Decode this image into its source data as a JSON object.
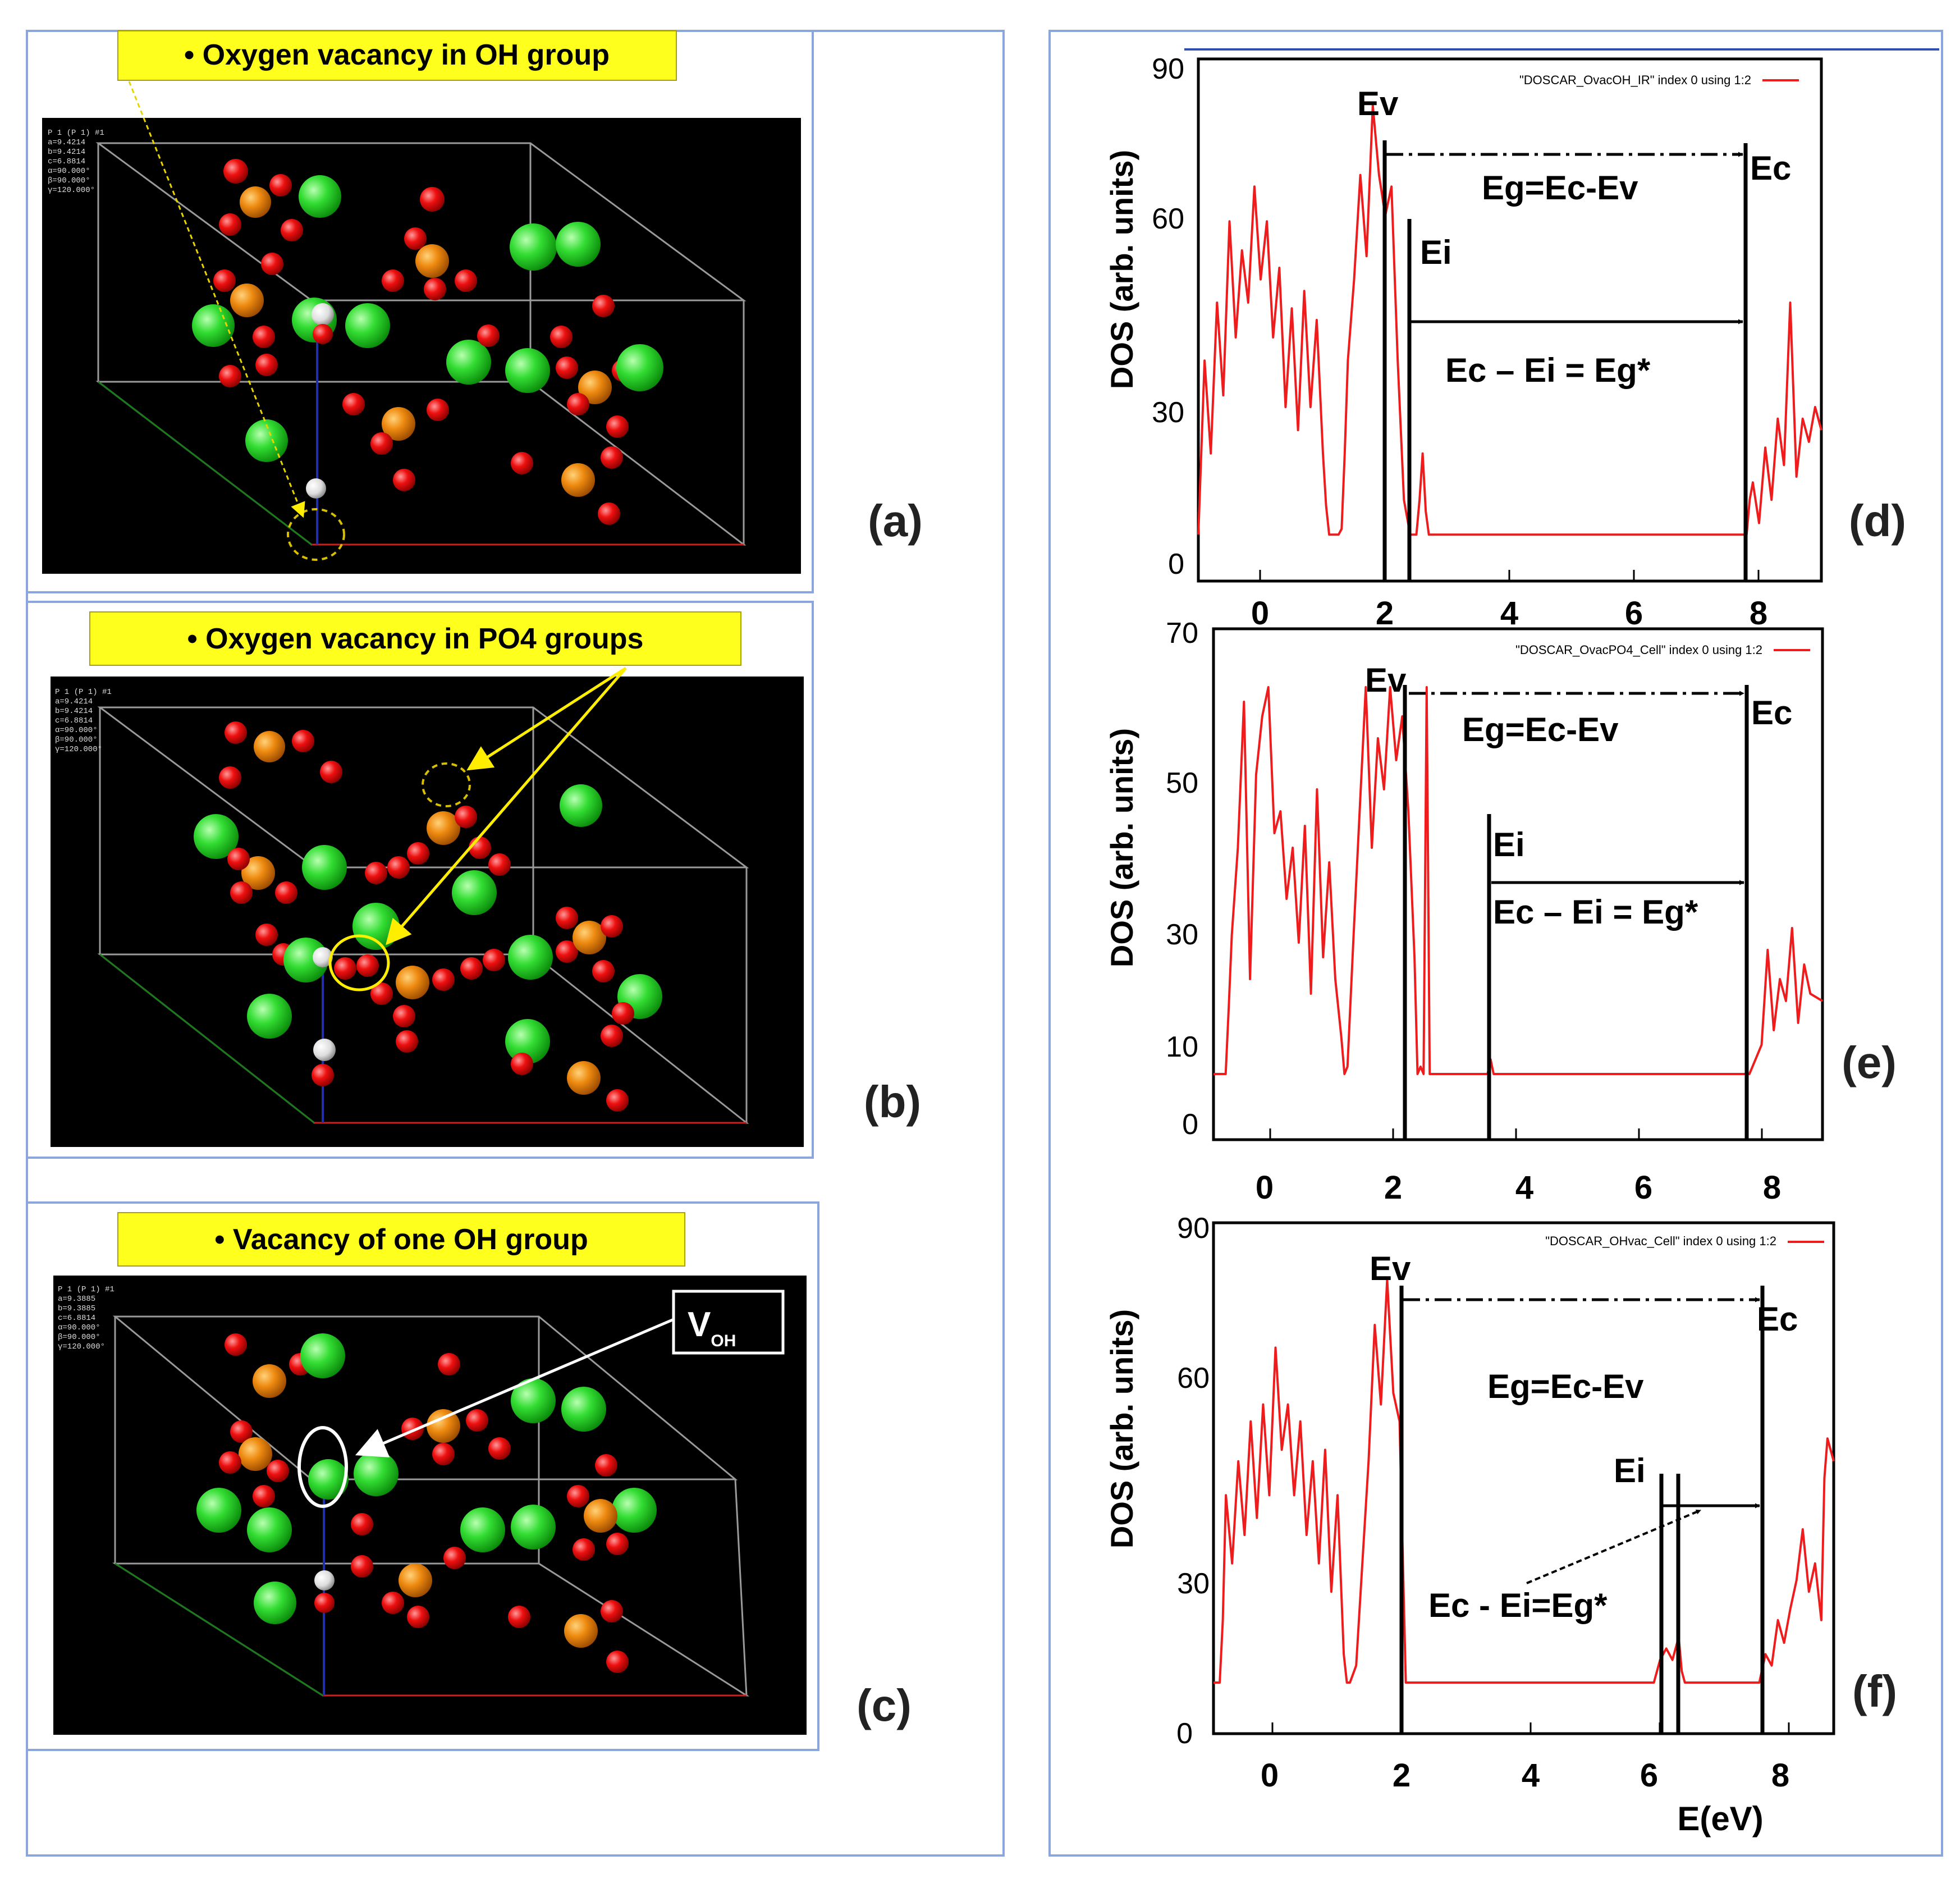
{
  "crystal_panels": [
    {
      "callout": "•  Oxygen vacancy in OH group",
      "letter": "(a)",
      "header_lines": [
        "P 1 (P 1) #1",
        "a=9.4214",
        "b=9.4214",
        "c=6.8814",
        "α=90.000°",
        "β=90.000°",
        "γ=120.000°"
      ]
    },
    {
      "callout": "•  Oxygen vacancy in PO4 groups",
      "letter": "(b)",
      "header_lines": [
        "P 1 (P 1) #1",
        "a=9.4214",
        "b=9.4214",
        "c=6.8814",
        "α=90.000°",
        "β=90.000°",
        "γ=120.000°"
      ]
    },
    {
      "callout": "•  Vacancy of one OH group",
      "letter": "(c)",
      "header_lines": [
        "P 1 (P 1) #1",
        "a=9.3885",
        "b=9.3885",
        "c=6.8814",
        "α=90.000°",
        "β=90.000°",
        "γ=120.000°"
      ]
    }
  ],
  "voh_label": {
    "main": "V",
    "sub": "OH"
  },
  "colors": {
    "curve": "#ee1c1c",
    "callout_bg": "#ffff1e",
    "frame": "#8aa6dc"
  },
  "chart_data": [
    {
      "type": "line",
      "letter": "(d)",
      "legend": "\"DOSCAR_OvacOH_IR\" index 0 using 1:2",
      "ylabel": "DOS (arb. units)",
      "xlabel": "",
      "xlim": [
        -1,
        9
      ],
      "ylim": [
        0,
        90
      ],
      "xticks": [
        0,
        2,
        4,
        6,
        8
      ],
      "yticks": [
        0,
        30,
        60,
        90
      ],
      "Ev": 2.1,
      "Ei": 2.5,
      "Ec": 7.9,
      "labels": {
        "Ev": "Ev",
        "Ei": "Ei",
        "Ec": "Ec",
        "eg": "Eg=Ec-Ev",
        "egstar": "Ec – Ei = Eg*"
      },
      "series": [
        {
          "name": "DOS",
          "x": [
            -1.0,
            -0.9,
            -0.8,
            -0.7,
            -0.6,
            -0.5,
            -0.4,
            -0.3,
            -0.2,
            -0.1,
            0.0,
            0.1,
            0.2,
            0.3,
            0.4,
            0.5,
            0.6,
            0.7,
            0.8,
            0.9,
            1.0,
            1.05,
            1.1,
            1.15,
            1.2,
            1.25,
            1.3,
            1.35,
            1.4,
            1.5,
            1.6,
            1.7,
            1.8,
            1.9,
            2.0,
            2.1,
            2.2,
            2.3,
            2.4,
            2.5,
            2.55,
            2.6,
            2.65,
            2.7,
            2.8,
            7.8,
            7.85,
            7.9,
            8.0,
            8.1,
            8.2,
            8.3,
            8.4,
            8.5,
            8.6,
            8.7,
            8.8,
            8.9,
            9.0
          ],
          "y": [
            8,
            38,
            22,
            48,
            32,
            62,
            42,
            57,
            48,
            68,
            52,
            62,
            42,
            54,
            30,
            47,
            26,
            50,
            30,
            45,
            22,
            13,
            8,
            8,
            8,
            8,
            9,
            22,
            38,
            52,
            70,
            56,
            82,
            70,
            63,
            68,
            38,
            14,
            8,
            8,
            14,
            22,
            12,
            8,
            8,
            8,
            14,
            17,
            10,
            23,
            14,
            28,
            20,
            48,
            18,
            28,
            24,
            30,
            26
          ]
        }
      ]
    },
    {
      "type": "line",
      "letter": "(e)",
      "legend": "\"DOSCAR_OvacPO4_Cell\" index 0 using 1:2",
      "ylabel": "DOS (arb. units)",
      "xlabel": "",
      "xlim": [
        -1,
        9
      ],
      "ylim": [
        0,
        70
      ],
      "xticks": [
        0,
        2,
        4,
        6,
        8
      ],
      "yticks": [
        0,
        10,
        30,
        50,
        70
      ],
      "Ev": 2.25,
      "Ei": 3.6,
      "Ec": 7.75,
      "labels": {
        "Ev": "Ev",
        "Ei": "Ei",
        "Ec": "Ec",
        "eg": "Eg=Ec-Ev",
        "egstar": "Ec – Ei = Eg*"
      },
      "series": [
        {
          "name": "DOS",
          "x": [
            -1.0,
            -0.8,
            -0.75,
            -0.7,
            -0.6,
            -0.5,
            -0.4,
            -0.3,
            -0.2,
            -0.1,
            0.0,
            0.1,
            0.2,
            0.3,
            0.4,
            0.5,
            0.6,
            0.7,
            0.8,
            0.9,
            1.0,
            1.1,
            1.15,
            1.2,
            1.3,
            1.4,
            1.5,
            1.6,
            1.7,
            1.8,
            1.9,
            2.0,
            2.1,
            2.2,
            2.3,
            2.35,
            2.4,
            2.45,
            2.5,
            2.55,
            3.4,
            3.5,
            3.55,
            3.6,
            7.7,
            7.8,
            7.9,
            8.0,
            8.1,
            8.2,
            8.3,
            8.4,
            8.5,
            8.6,
            8.7,
            8.8,
            9.0
          ],
          "y": [
            9,
            9,
            18,
            28,
            40,
            60,
            22,
            50,
            58,
            62,
            42,
            45,
            33,
            40,
            27,
            43,
            20,
            48,
            25,
            38,
            22,
            14,
            9,
            10,
            28,
            45,
            62,
            40,
            55,
            48,
            62,
            52,
            58,
            45,
            25,
            9,
            10,
            9,
            62,
            9,
            9,
            9,
            11,
            9,
            9,
            9,
            11,
            13,
            26,
            15,
            22,
            19,
            29,
            16,
            24,
            20,
            19
          ]
        }
      ]
    },
    {
      "type": "line",
      "letter": "(f)",
      "legend": "\"DOSCAR_OHvac_Cell\" index 0 using 1:2",
      "ylabel": "DOS (arb. units)",
      "xlabel": "E(eV)",
      "xlim": [
        -1,
        9
      ],
      "ylim": [
        0,
        90
      ],
      "xticks": [
        0,
        2,
        4,
        6,
        8
      ],
      "yticks": [
        0,
        30,
        60,
        90
      ],
      "Ev": 2.0,
      "Ei": 6.3,
      "Ei2": 6.55,
      "Ec": 7.85,
      "labels": {
        "Ev": "Ev",
        "Ei": "Ei",
        "Ec": "Ec",
        "eg": "Eg=Ec-Ev",
        "egstar": "Ec - Ei=Eg*"
      },
      "series": [
        {
          "name": "DOS",
          "x": [
            -1.0,
            -0.9,
            -0.85,
            -0.8,
            -0.7,
            -0.6,
            -0.5,
            -0.4,
            -0.3,
            -0.2,
            -0.1,
            0.0,
            0.1,
            0.2,
            0.3,
            0.4,
            0.5,
            0.6,
            0.7,
            0.8,
            0.9,
            1.0,
            1.1,
            1.15,
            1.2,
            1.3,
            1.4,
            1.5,
            1.6,
            1.7,
            1.8,
            1.9,
            2.0,
            2.05,
            2.1,
            6.1,
            6.2,
            6.3,
            6.4,
            6.5,
            6.55,
            6.6,
            7.7,
            7.8,
            7.9,
            8.0,
            8.1,
            8.2,
            8.3,
            8.4,
            8.5,
            8.6,
            8.7,
            8.8,
            8.85,
            8.9,
            9.0
          ],
          "y": [
            9,
            9,
            20,
            42,
            30,
            48,
            35,
            55,
            38,
            58,
            42,
            68,
            50,
            58,
            42,
            55,
            35,
            48,
            30,
            50,
            25,
            42,
            14,
            9,
            9,
            12,
            30,
            48,
            72,
            58,
            80,
            60,
            55,
            32,
            9,
            9,
            13,
            15,
            13,
            17,
            11,
            9,
            9,
            9,
            14,
            12,
            20,
            16,
            22,
            27,
            36,
            25,
            30,
            20,
            45,
            52,
            48
          ]
        }
      ]
    }
  ]
}
